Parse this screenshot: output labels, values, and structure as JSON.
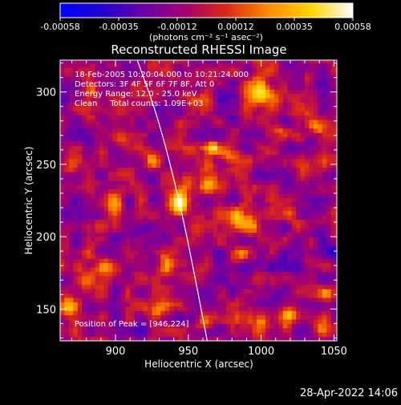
{
  "chart_data": {
    "type": "heatmap",
    "title": "Reconstructed RHESSI Image",
    "xlabel": "Heliocentric X (arcsec)",
    "ylabel": "Heliocentric Y (arcsec)",
    "xlim": [
      862,
      1052
    ],
    "ylim": [
      128,
      322
    ],
    "xticks": [
      900,
      950,
      1000,
      1050
    ],
    "yticks": [
      150,
      200,
      250,
      300
    ],
    "colorbar": {
      "min": -0.00058,
      "max": 0.00058,
      "tick_labels": [
        "-0.00058",
        "-0.00035",
        "-0.00012",
        "0.00012",
        "0.00035",
        "0.00058"
      ],
      "unit_label": "(photons cm⁻² s⁻¹ asec⁻²)",
      "colormap": [
        "#0000ff",
        "#2200d0",
        "#6a00a8",
        "#a40070",
        "#dc2a14",
        "#ff8c00",
        "#ffd400",
        "#ffffff"
      ]
    },
    "info_lines": [
      "18-Feb-2005 10:20:04.000 to 10:21:24.000",
      "Detectors: 3F 4F 5F 6F 7F 8F, Att 0",
      "Energy Range: 12.0 - 25.0 keV",
      "Clean     Total counts: 1.09E+03"
    ],
    "peak_label": "Position of Peak = [946,224]",
    "peak": {
      "x": 946,
      "y": 224
    },
    "limb": [
      [
        915,
        322
      ],
      [
        930,
        280
      ],
      [
        945,
        220
      ],
      [
        955,
        170
      ],
      [
        963,
        128
      ]
    ],
    "grid_step": 3,
    "background_value": -0.0001,
    "sources": [
      {
        "x": 944,
        "y": 223,
        "sx": 4,
        "sy": 6,
        "amp": 0.00085
      },
      {
        "x": 948,
        "y": 236,
        "sx": 5,
        "sy": 5,
        "amp": 0.0004
      },
      {
        "x": 966,
        "y": 262,
        "sx": 4,
        "sy": 3,
        "amp": 0.00055
      },
      {
        "x": 978,
        "y": 258,
        "sx": 5,
        "sy": 4,
        "amp": 0.0003
      },
      {
        "x": 964,
        "y": 241,
        "sx": 4,
        "sy": 7,
        "amp": 0.00035
      },
      {
        "x": 984,
        "y": 214,
        "sx": 4,
        "sy": 6,
        "amp": 0.0004
      },
      {
        "x": 994,
        "y": 209,
        "sx": 4,
        "sy": 5,
        "amp": 0.0004
      },
      {
        "x": 985,
        "y": 188,
        "sx": 4,
        "sy": 4,
        "amp": 0.0003
      },
      {
        "x": 1000,
        "y": 300,
        "sx": 7,
        "sy": 6,
        "amp": 0.0004
      },
      {
        "x": 1015,
        "y": 272,
        "sx": 4,
        "sy": 4,
        "amp": 0.0003
      },
      {
        "x": 1036,
        "y": 252,
        "sx": 6,
        "sy": 5,
        "amp": 0.0003
      },
      {
        "x": 1028,
        "y": 243,
        "sx": 4,
        "sy": 4,
        "amp": 0.00025
      },
      {
        "x": 1038,
        "y": 276,
        "sx": 4,
        "sy": 4,
        "amp": 0.00028
      },
      {
        "x": 1022,
        "y": 215,
        "sx": 4,
        "sy": 4,
        "amp": 0.00025
      },
      {
        "x": 1020,
        "y": 148,
        "sx": 5,
        "sy": 5,
        "amp": 0.0004
      },
      {
        "x": 1045,
        "y": 160,
        "sx": 4,
        "sy": 4,
        "amp": 0.0003
      },
      {
        "x": 1040,
        "y": 136,
        "sx": 4,
        "sy": 4,
        "amp": 0.0003
      },
      {
        "x": 1000,
        "y": 140,
        "sx": 4,
        "sy": 5,
        "amp": 0.00025
      },
      {
        "x": 900,
        "y": 225,
        "sx": 5,
        "sy": 6,
        "amp": 0.00035
      },
      {
        "x": 880,
        "y": 170,
        "sx": 6,
        "sy": 8,
        "amp": 0.0004
      },
      {
        "x": 868,
        "y": 150,
        "sx": 4,
        "sy": 6,
        "amp": 0.00035
      },
      {
        "x": 895,
        "y": 180,
        "sx": 4,
        "sy": 5,
        "amp": 0.00025
      },
      {
        "x": 935,
        "y": 180,
        "sx": 4,
        "sy": 6,
        "amp": 0.0003
      },
      {
        "x": 930,
        "y": 150,
        "sx": 5,
        "sy": 4,
        "amp": 0.0003
      },
      {
        "x": 905,
        "y": 268,
        "sx": 5,
        "sy": 4,
        "amp": 0.00025
      },
      {
        "x": 925,
        "y": 255,
        "sx": 4,
        "sy": 5,
        "amp": 0.00025
      },
      {
        "x": 883,
        "y": 300,
        "sx": 4,
        "sy": 4,
        "amp": 0.00025
      },
      {
        "x": 870,
        "y": 248,
        "sx": 4,
        "sy": 5,
        "amp": 0.00025
      },
      {
        "x": 960,
        "y": 140,
        "sx": 4,
        "sy": 4,
        "amp": 0.00025
      },
      {
        "x": 955,
        "y": 295,
        "sx": 5,
        "sy": 4,
        "amp": 0.00025
      },
      {
        "x": 1033,
        "y": 310,
        "sx": 4,
        "sy": 4,
        "amp": 0.00025
      },
      {
        "x": 1040,
        "y": 200,
        "sx": 5,
        "sy": 5,
        "amp": -0.0002
      },
      {
        "x": 915,
        "y": 200,
        "sx": 6,
        "sy": 5,
        "amp": -0.00015
      },
      {
        "x": 1010,
        "y": 180,
        "sx": 6,
        "sy": 5,
        "amp": -0.00015
      },
      {
        "x": 1050,
        "y": 190,
        "sx": 4,
        "sy": 4,
        "amp": -0.0002
      }
    ]
  },
  "footer": {
    "timestamp": "28-Apr-2022 14:06"
  }
}
